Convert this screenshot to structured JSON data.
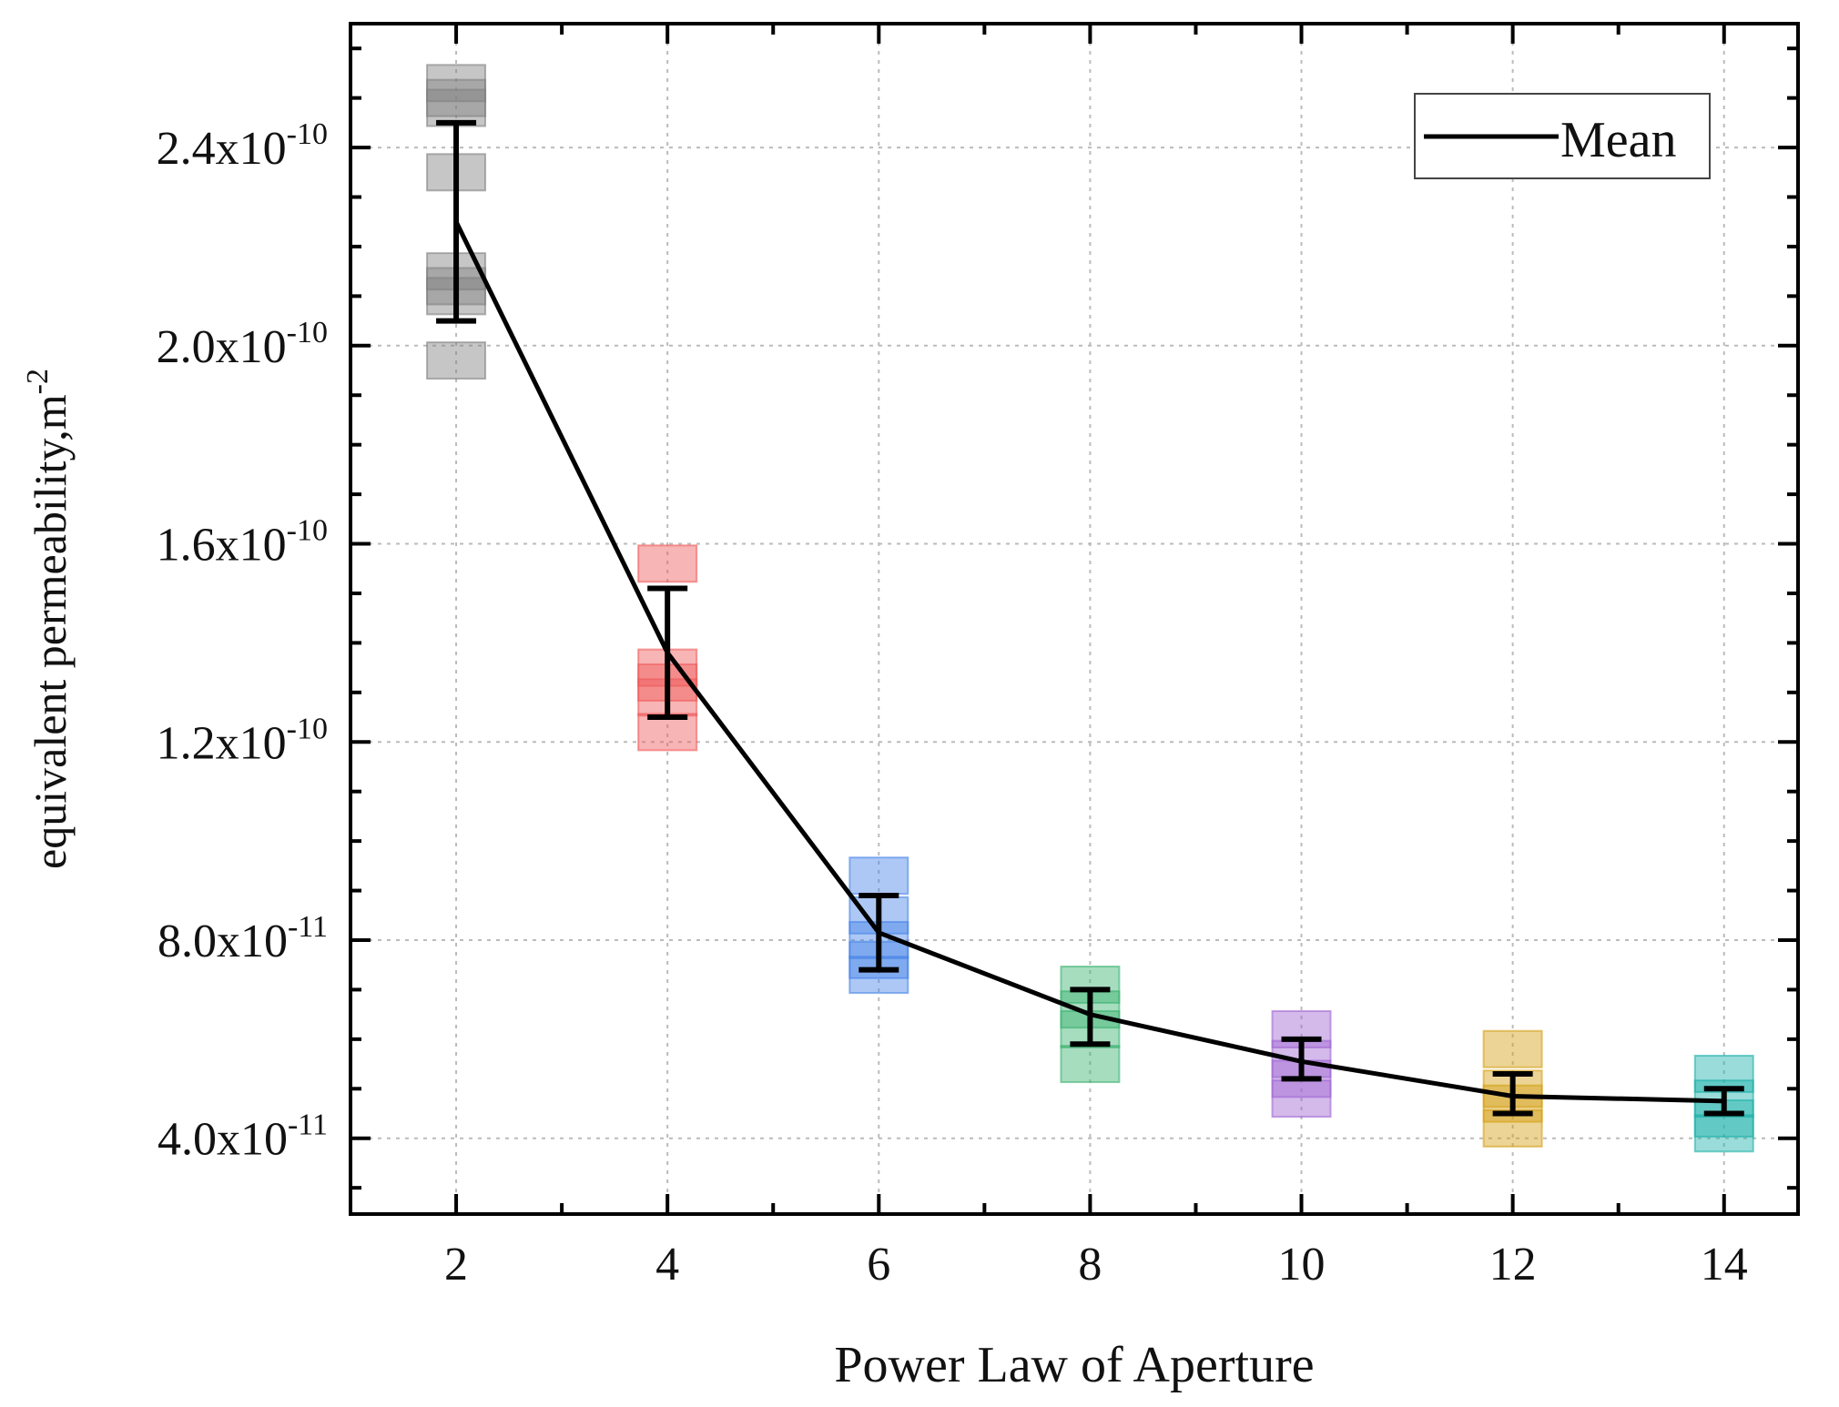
{
  "chart_data": {
    "type": "scatter",
    "title": "",
    "xlabel": "Power Law of Aperture",
    "ylabel": "equivalent permeability,m",
    "ylabel_superscript": "-2",
    "xlim": [
      1,
      14.7
    ],
    "ylim": [
      2.47e-11,
      2.65e-10
    ],
    "x_ticks": [
      2,
      4,
      6,
      8,
      10,
      12,
      14
    ],
    "x_tick_labels": [
      "2",
      "4",
      "6",
      "8",
      "10",
      "12",
      "14"
    ],
    "y_ticks": [
      4e-11,
      8e-11,
      1.2e-10,
      1.6e-10,
      2e-10,
      2.4e-10
    ],
    "y_tick_labels": [
      {
        "mantissa": "4.0x10",
        "exp": "-11"
      },
      {
        "mantissa": "8.0x10",
        "exp": "-11"
      },
      {
        "mantissa": "1.2x10",
        "exp": "-10"
      },
      {
        "mantissa": "1.6x10",
        "exp": "-10"
      },
      {
        "mantissa": "2.0x10",
        "exp": "-10"
      },
      {
        "mantissa": "2.4x10",
        "exp": "-10"
      }
    ],
    "grid": true,
    "legend": {
      "placement": "top-right",
      "entries": [
        "Mean"
      ]
    },
    "mean_series": {
      "name": "Mean",
      "color": "#000000",
      "x": [
        2,
        4,
        6,
        8,
        10,
        12,
        14
      ],
      "y": [
        2.25e-10,
        1.38e-10,
        8.15e-11,
        6.5e-11,
        5.55e-11,
        4.85e-11,
        4.75e-11
      ],
      "err_low": [
        2.05e-10,
        1.25e-10,
        7.4e-11,
        5.9e-11,
        5.2e-11,
        4.5e-11,
        4.5e-11
      ],
      "err_high": [
        2.45e-10,
        1.51e-10,
        8.9e-11,
        7e-11,
        6e-11,
        5.3e-11,
        5e-11
      ]
    },
    "groups": [
      {
        "x": 2,
        "color": "#808080",
        "values": [
          2.53e-10,
          2.5e-10,
          2.48e-10,
          2.35e-10,
          2.15e-10,
          2.12e-10,
          2.1e-10,
          1.97e-10
        ]
      },
      {
        "x": 4,
        "color": "#f05a5a",
        "values": [
          1.56e-10,
          1.35e-10,
          1.32e-10,
          1.29e-10,
          1.22e-10
        ]
      },
      {
        "x": 6,
        "color": "#4a86e8",
        "values": [
          9.3e-11,
          8.5e-11,
          8e-11,
          7.6e-11,
          7.3e-11
        ]
      },
      {
        "x": 8,
        "color": "#3cb371",
        "values": [
          7.1e-11,
          6.6e-11,
          6.2e-11,
          5.5e-11
        ]
      },
      {
        "x": 10,
        "color": "#a066d3",
        "values": [
          6.2e-11,
          5.6e-11,
          5.2e-11,
          4.8e-11
        ]
      },
      {
        "x": 12,
        "color": "#d4a017",
        "values": [
          5.8e-11,
          5e-11,
          4.7e-11,
          4.2e-11
        ]
      },
      {
        "x": 14,
        "color": "#20b2aa",
        "values": [
          5.3e-11,
          4.8e-11,
          4.4e-11,
          4.1e-11
        ]
      }
    ]
  }
}
